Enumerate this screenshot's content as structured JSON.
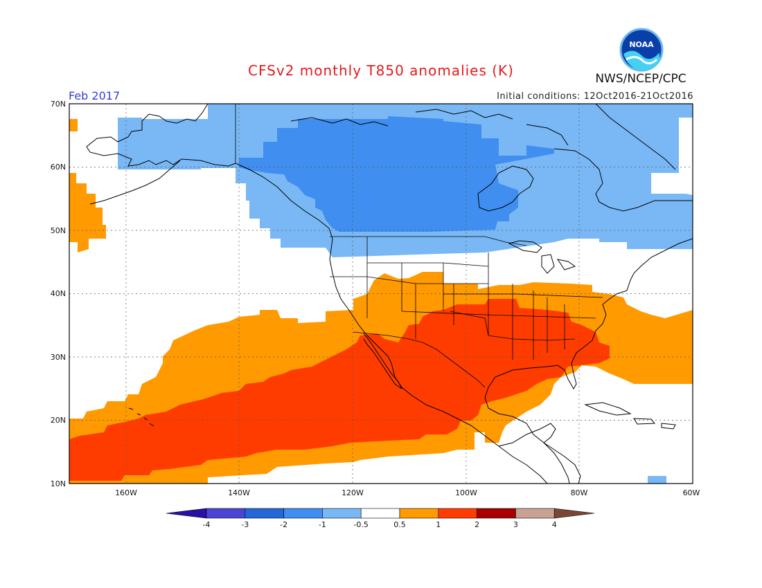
{
  "title": "CFSv2 monthly T850 anomalies (K)",
  "month": "Feb 2017",
  "initial_conditions": "Initial conditions: 12Oct2016-21Oct2016",
  "agency": "NWS/NCEP/CPC",
  "logo_text": "NOAA",
  "map": {
    "lon_range": [
      -170,
      -60
    ],
    "lat_range": [
      10,
      70
    ],
    "lat_labels": [
      "10N",
      "20N",
      "30N",
      "40N",
      "50N",
      "60N",
      "70N"
    ],
    "lon_labels": [
      "160W",
      "140W",
      "120W",
      "100W",
      "80W",
      "60W"
    ],
    "grid": "dotted every 20 degrees lon, 10 degrees lat"
  },
  "legend": {
    "ticks": [
      "-4",
      "-3",
      "-2",
      "-1",
      "-0.5",
      "0.5",
      "1",
      "2",
      "3",
      "4"
    ],
    "colors": [
      "#2a0fa8",
      "#4b45d6",
      "#2367d8",
      "#3f8ef0",
      "#79b8f5",
      "#ffffff",
      "#ff9a00",
      "#ff3c00",
      "#a80000",
      "#c9a295",
      "#7a4635"
    ]
  },
  "anomaly_regions": [
    {
      "category": "-1 to -0.5",
      "color": "#79b8f5",
      "area": "Alaska, Canada, northern Pacific near 55-70N"
    },
    {
      "category": "-2 to -1",
      "color": "#3f8ef0",
      "area": "Western/central Canada and Hudson Bay region"
    },
    {
      "category": "0.5 to 1",
      "color": "#ff9a00",
      "area": "Southern US, subtropical Pacific band, western Atlantic"
    },
    {
      "category": "1 to 2",
      "color": "#ff3c00",
      "area": "Mexico, southern/southeastern US, tropical Pacific band"
    }
  ]
}
